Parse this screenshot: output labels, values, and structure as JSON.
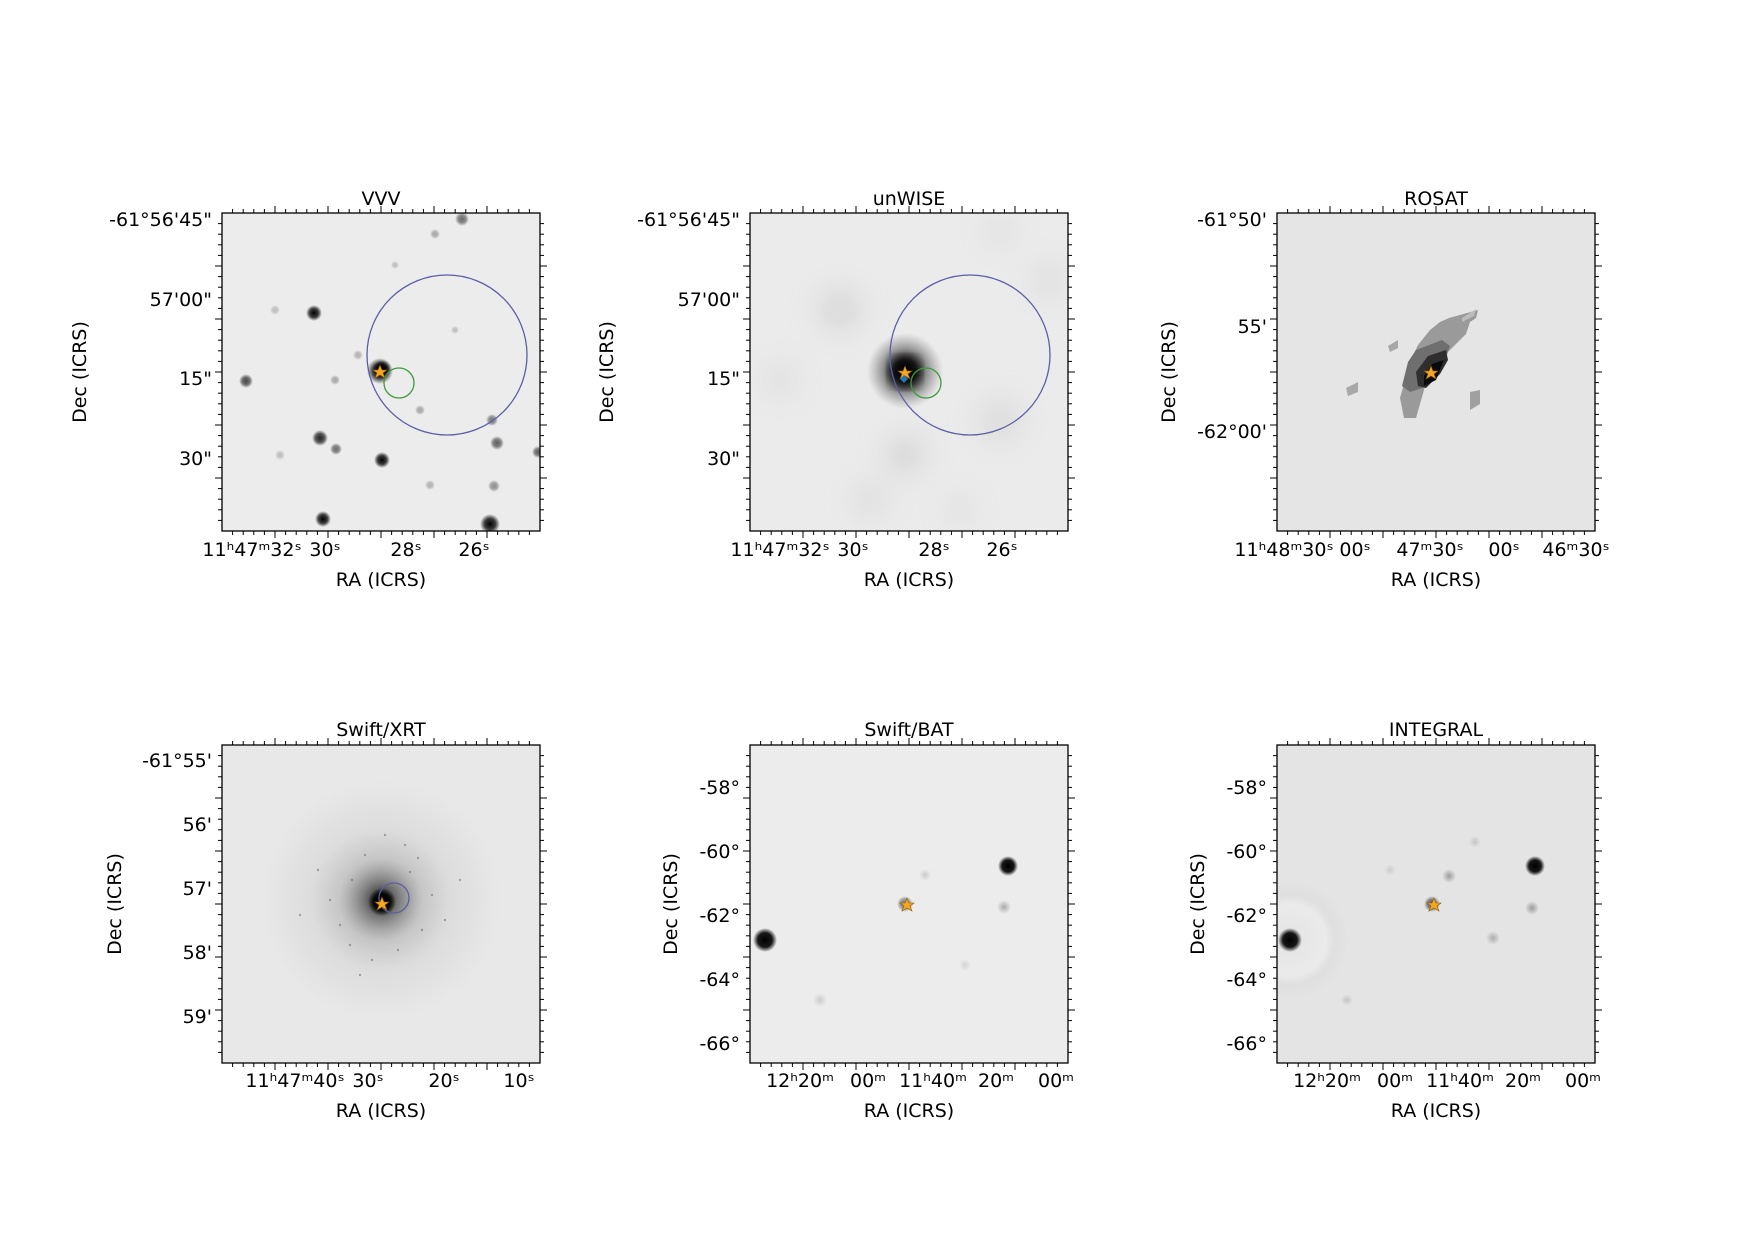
{
  "figure": {
    "panels": [
      {
        "id": "vvv",
        "title": "VVV",
        "xlabel": "RA (ICRS)",
        "ylabel": "Dec (ICRS)",
        "xticks": [
          "11ʰ47ᵐ32ˢ",
          "30ˢ",
          "28ˢ",
          "26ˢ"
        ],
        "yticks": [
          "-61°56'45\"",
          "57'00\"",
          "15\"",
          "30\""
        ]
      },
      {
        "id": "unwise",
        "title": "unWISE",
        "xlabel": "RA (ICRS)",
        "ylabel": "Dec (ICRS)",
        "xticks": [
          "11ʰ47ᵐ32ˢ",
          "30ˢ",
          "28ˢ",
          "26ˢ"
        ],
        "yticks": [
          "-61°56'45\"",
          "57'00\"",
          "15\"",
          "30\""
        ]
      },
      {
        "id": "rosat",
        "title": "ROSAT",
        "xlabel": "RA (ICRS)",
        "ylabel": "Dec (ICRS)",
        "xticks": [
          "11ʰ48ᵐ30ˢ",
          "00ˢ",
          "47ᵐ30ˢ",
          "00ˢ",
          "46ᵐ30ˢ"
        ],
        "yticks": [
          "-61°50'",
          "55'",
          "-62°00'"
        ]
      },
      {
        "id": "swift-xrt",
        "title": "Swift/XRT",
        "xlabel": "RA (ICRS)",
        "ylabel": "Dec (ICRS)",
        "xticks": [
          "11ʰ47ᵐ40ˢ",
          "30ˢ",
          "20ˢ",
          "10ˢ"
        ],
        "yticks": [
          "-61°55'",
          "56'",
          "57'",
          "58'",
          "59'"
        ]
      },
      {
        "id": "swift-bat",
        "title": "Swift/BAT",
        "xlabel": "RA (ICRS)",
        "ylabel": "Dec (ICRS)",
        "xticks": [
          "12ʰ20ᵐ",
          "00ᵐ",
          "11ʰ40ᵐ",
          "20ᵐ",
          "00ᵐ"
        ],
        "yticks": [
          "-58°",
          "-60°",
          "-62°",
          "-64°",
          "-66°"
        ]
      },
      {
        "id": "integral",
        "title": "INTEGRAL",
        "xlabel": "RA (ICRS)",
        "ylabel": "Dec (ICRS)",
        "xticks": [
          "12ʰ20ᵐ",
          "00ᵐ",
          "11ʰ40ᵐ",
          "20ᵐ",
          "00ᵐ"
        ],
        "yticks": [
          "-58°",
          "-60°",
          "-62°",
          "-64°",
          "-66°"
        ]
      }
    ],
    "colors": {
      "background_gray": "#e6e6e6",
      "error_circle_large": "#5b5ea6",
      "error_circle_small": "#3c9a3c",
      "marker_star": "#f5a623",
      "marker_diamond": "#1f77b4"
    }
  }
}
